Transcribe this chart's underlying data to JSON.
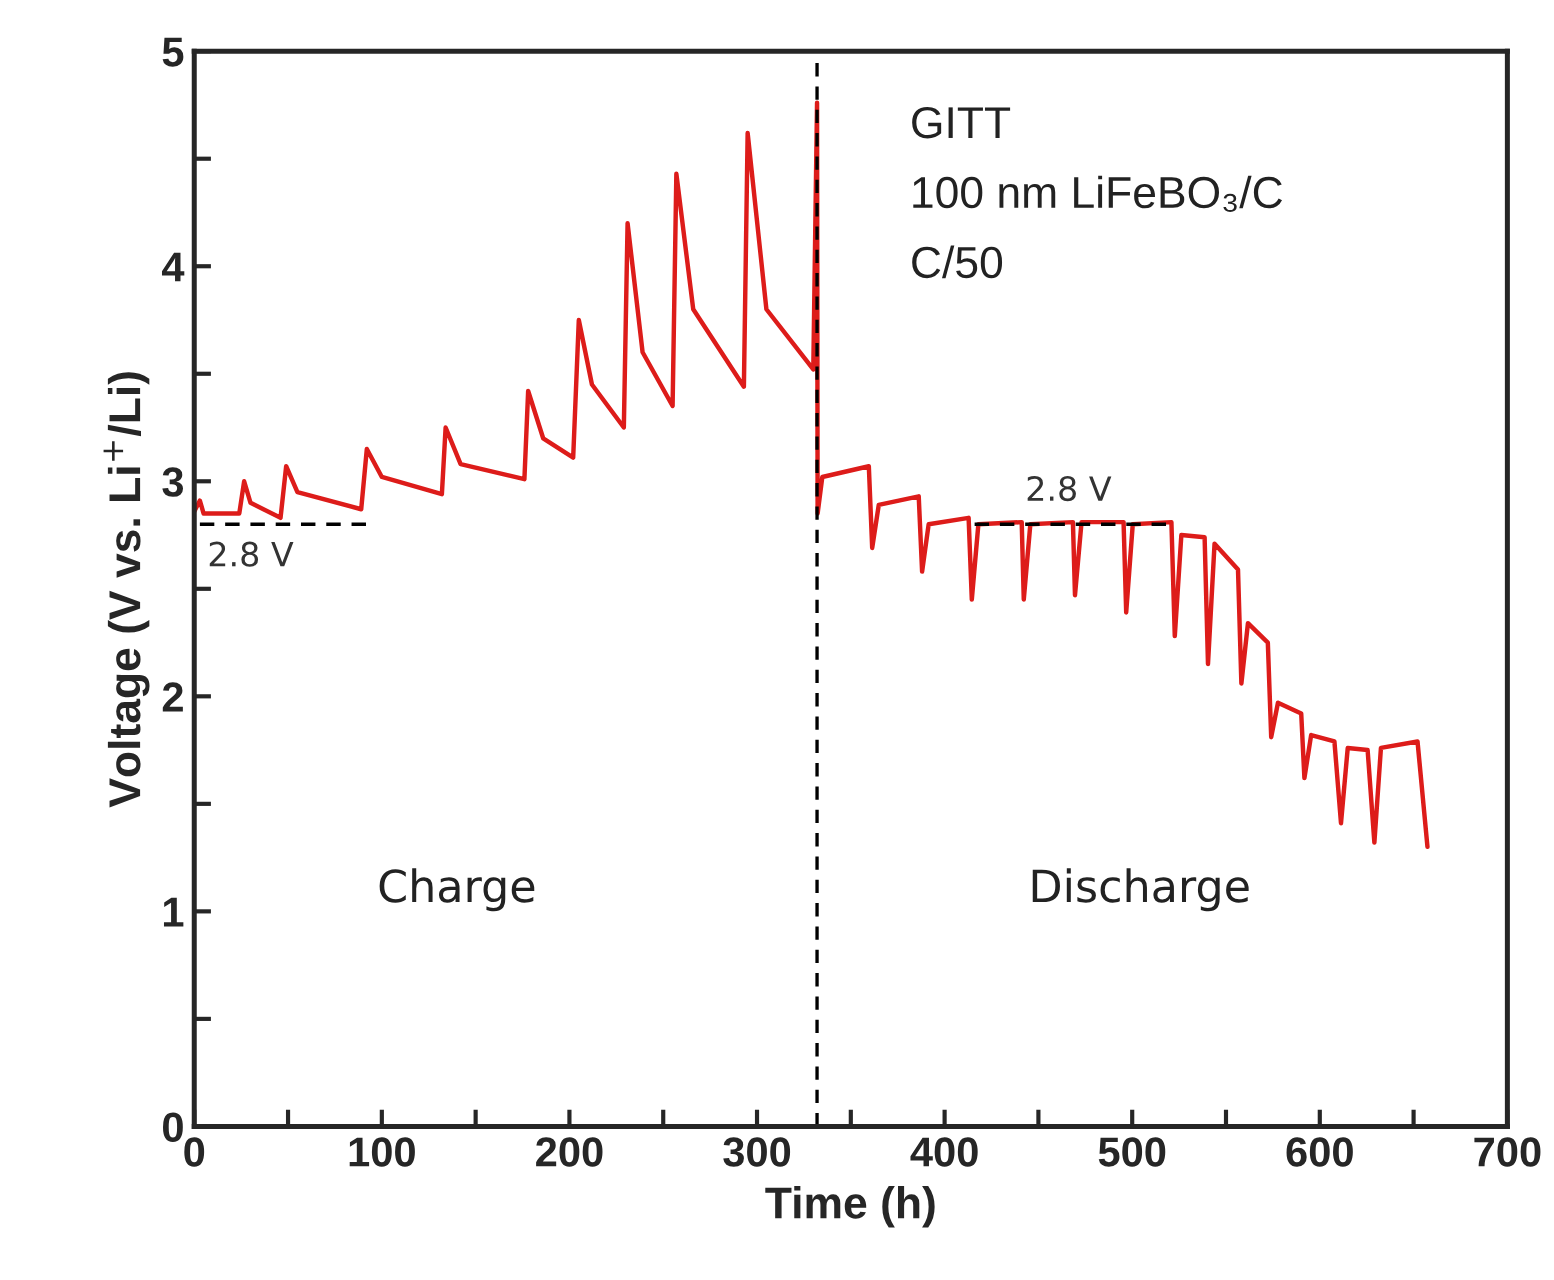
{
  "chart_data": {
    "type": "line",
    "xlabel": "Time (h)",
    "ylabel": "Voltage (V vs. Li$^{+}$/Li)",
    "xlim": [
      0,
      700
    ],
    "ylim": [
      0,
      5
    ],
    "xticks": [
      0,
      {
        "value": 50,
        "label": null
      },
      100,
      {
        "value": 150,
        "label": null
      },
      200,
      {
        "value": 250,
        "label": null
      },
      300,
      {
        "value": 350,
        "label": null
      },
      400,
      {
        "value": 450,
        "label": null
      },
      500,
      {
        "value": 550,
        "label": null
      },
      600,
      {
        "value": 650,
        "label": null
      },
      700
    ],
    "yticks": [
      0,
      {
        "value": 0.5,
        "label": null
      },
      1,
      {
        "value": 1.5,
        "label": null
      },
      2,
      {
        "value": 2.5,
        "label": null
      },
      3,
      {
        "value": 3.5,
        "label": null
      },
      4,
      {
        "value": 4.5,
        "label": null
      },
      5
    ],
    "grid": false,
    "legend": false,
    "marker": "none",
    "series": [
      {
        "color": "#dd1c1a",
        "line_style": "solid",
        "x": [
          0,
          3,
          5,
          24,
          26.6,
          30,
          46,
          49,
          55,
          89,
          92,
          100,
          132,
          134,
          142,
          176,
          178,
          186,
          202,
          205,
          212,
          229,
          231,
          239,
          255,
          257,
          266,
          293,
          295,
          305,
          330,
          332,
          332.3,
          334.8,
          359.6,
          361.4,
          364.9,
          386.2,
          388,
          391.5,
          412.8,
          414.5,
          418,
          441.1,
          442.2,
          445.7,
          468.4,
          469.5,
          473,
          495.4,
          496.8,
          500.3,
          520.9,
          522.7,
          526.2,
          538.6,
          540.4,
          543.9,
          556.4,
          558.2,
          561.7,
          572.3,
          574.1,
          577.7,
          590.1,
          591.8,
          595.4,
          607.8,
          611.3,
          614.9,
          625.5,
          629.1,
          632.6,
          652.1,
          657.4
        ],
        "values": [
          2.86,
          2.91,
          2.85,
          2.85,
          3.0,
          2.9,
          2.83,
          3.07,
          2.95,
          2.87,
          3.15,
          3.02,
          2.94,
          3.25,
          3.08,
          3.01,
          3.42,
          3.2,
          3.11,
          3.75,
          3.45,
          3.25,
          4.2,
          3.6,
          3.35,
          4.43,
          3.8,
          3.44,
          4.62,
          3.8,
          3.52,
          4.76,
          2.85,
          3.02,
          3.07,
          2.69,
          2.89,
          2.93,
          2.58,
          2.8,
          2.83,
          2.45,
          2.8,
          2.81,
          2.45,
          2.8,
          2.81,
          2.47,
          2.81,
          2.81,
          2.39,
          2.8,
          2.81,
          2.28,
          2.75,
          2.74,
          2.15,
          2.71,
          2.59,
          2.06,
          2.34,
          2.25,
          1.81,
          1.97,
          1.92,
          1.62,
          1.82,
          1.79,
          1.41,
          1.76,
          1.75,
          1.32,
          1.76,
          1.79,
          1.3
        ]
      },
      {
        "color": "#000000",
        "line_style": "dashed",
        "x": [
          3,
          94
        ],
        "values": [
          2.8,
          2.8
        ]
      },
      {
        "color": "#000000",
        "line_style": "dashed",
        "x": [
          416,
          521
        ],
        "values": [
          2.8,
          2.8
        ]
      }
    ],
    "ref_lines": [
      {
        "axis": "x",
        "value": 332,
        "color": "#000000",
        "line_style": "dashed"
      }
    ],
    "annotations": [
      {
        "text": "2.8 V",
        "x": 30,
        "y": 2.8
      },
      {
        "text": "2.8 V",
        "x": 466,
        "y": 2.8
      },
      "GITT",
      "100 nm LiFeBO₃/C",
      "C/50",
      "Charge",
      "Discharge"
    ]
  }
}
